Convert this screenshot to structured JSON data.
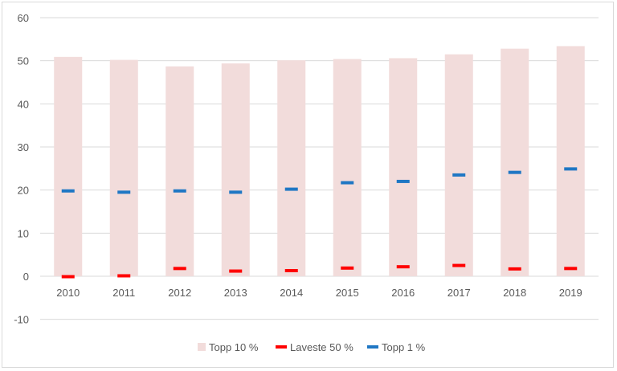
{
  "chart_data": {
    "type": "bar",
    "title": "",
    "xlabel": "",
    "ylabel": "",
    "categories": [
      "2010",
      "2011",
      "2012",
      "2013",
      "2014",
      "2015",
      "2016",
      "2017",
      "2018",
      "2019"
    ],
    "ylim": [
      -10,
      60
    ],
    "yticks": [
      -10,
      0,
      10,
      20,
      30,
      40,
      50,
      60
    ],
    "grid": true,
    "legend_position": "bottom",
    "series": [
      {
        "name": "Topp 10 %",
        "kind": "bar",
        "color": "#f2dcdb",
        "values": [
          50.9,
          50.2,
          48.7,
          49.4,
          50.1,
          50.4,
          50.6,
          51.5,
          52.8,
          53.4
        ]
      },
      {
        "name": "Laveste 50 %",
        "kind": "dash-marker",
        "color": "#ff0000",
        "values": [
          -0.1,
          0.1,
          1.8,
          1.2,
          1.3,
          1.9,
          2.2,
          2.5,
          1.7,
          1.8
        ]
      },
      {
        "name": "Topp 1 %",
        "kind": "dash-marker",
        "color": "#1f77c4",
        "values": [
          19.8,
          19.5,
          19.8,
          19.5,
          20.2,
          21.7,
          22.0,
          23.5,
          24.1,
          24.9
        ]
      }
    ]
  }
}
